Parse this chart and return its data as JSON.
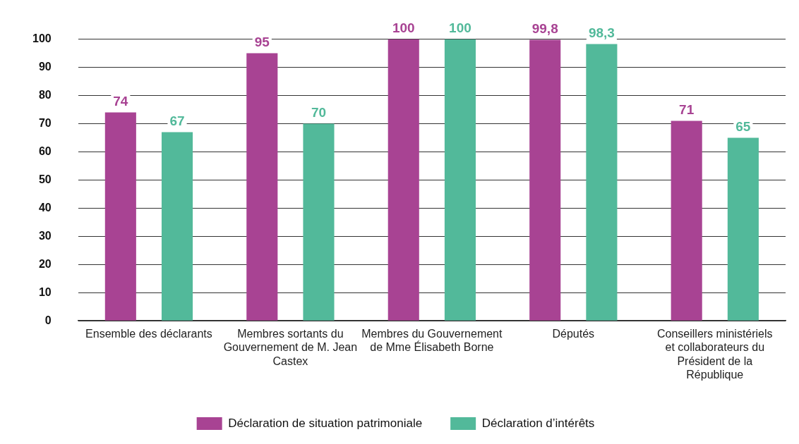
{
  "chart_data": {
    "type": "bar",
    "categories": [
      "Ensemble des déclarants",
      "Membres sortants du Gouvernement de M. Jean Castex",
      "Membres du Gouvernement de Mme Élisabeth Borne",
      "Députés",
      "Conseillers ministériels et collaborateurs du Président de la République"
    ],
    "series": [
      {
        "name": "Déclaration de situation patrimoniale",
        "color": "#a84393",
        "values": [
          74,
          95,
          100,
          99.8,
          71
        ],
        "value_labels": [
          "74",
          "95",
          "100",
          "99,8",
          "71"
        ]
      },
      {
        "name": "Déclaration d’intérêts",
        "color": "#52b99a",
        "values": [
          67,
          70,
          100,
          98.3,
          65
        ],
        "value_labels": [
          "67",
          "70",
          "100",
          "98,3",
          "65"
        ]
      }
    ],
    "ylim": [
      0,
      100
    ],
    "yticks": [
      0,
      10,
      20,
      30,
      40,
      50,
      60,
      70,
      80,
      90,
      100
    ],
    "grid": "y",
    "legend": "bottom"
  }
}
